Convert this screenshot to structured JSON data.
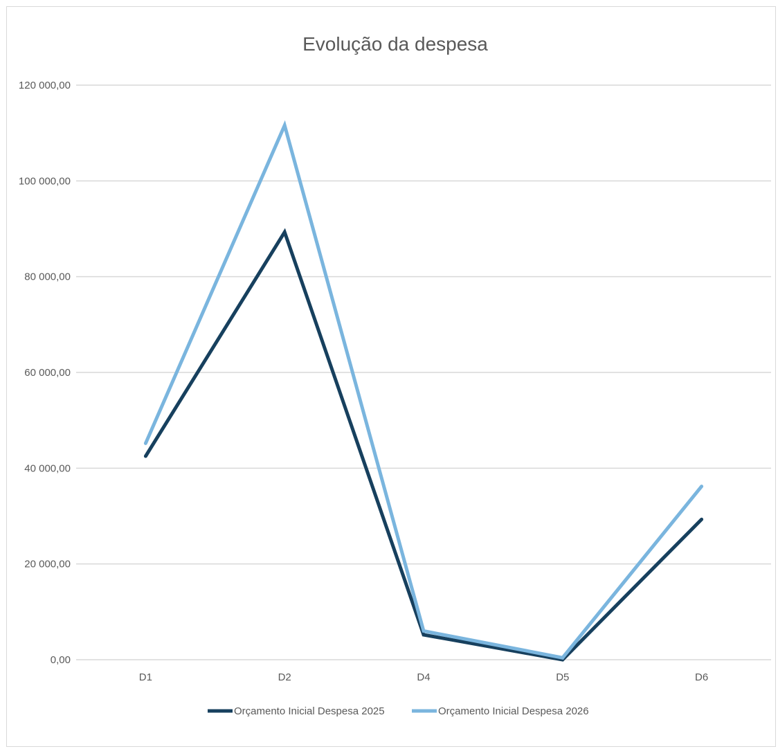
{
  "chart_data": {
    "type": "line",
    "title": "Evolução da despesa",
    "xlabel": "",
    "ylabel": "",
    "categories": [
      "D1",
      "D2",
      "D4",
      "D5",
      "D6"
    ],
    "ylim": [
      0,
      120000
    ],
    "y_ticks": [
      0,
      20000,
      40000,
      60000,
      80000,
      100000,
      120000
    ],
    "y_tick_labels": [
      "0,00",
      "20 000,00",
      "40 000,00",
      "60 000,00",
      "80 000,00",
      "100 000,00",
      "120 000,00"
    ],
    "grid": "horizontal",
    "legend_position": "bottom",
    "series": [
      {
        "name": "Orçamento Inicial  Despesa 2025",
        "color": "#17405e",
        "values": [
          42500,
          89300,
          5200,
          0,
          29300
        ]
      },
      {
        "name": "Orçamento Inicial  Despesa 2026",
        "color": "#7ab5de",
        "values": [
          45200,
          111600,
          6000,
          400,
          36200
        ]
      }
    ]
  }
}
